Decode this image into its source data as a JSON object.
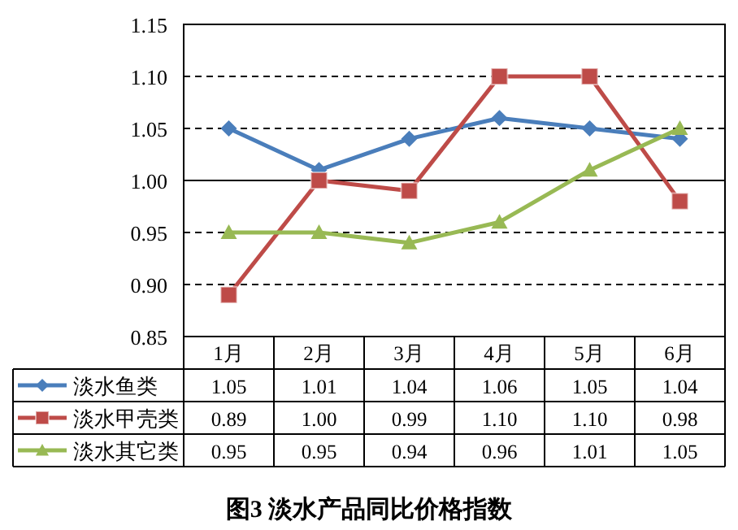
{
  "chart_data": {
    "type": "line",
    "title": "图3 淡水产品同比价格指数",
    "categories": [
      "1月",
      "2月",
      "3月",
      "4月",
      "5月",
      "6月"
    ],
    "series": [
      {
        "name": "淡水鱼类",
        "color": "#4a7ebb",
        "marker": "diamond",
        "values": [
          1.05,
          1.01,
          1.04,
          1.06,
          1.05,
          1.04
        ]
      },
      {
        "name": "淡水甲壳类",
        "color": "#be4b48",
        "marker": "square",
        "values": [
          0.89,
          1.0,
          0.99,
          1.1,
          1.1,
          0.98
        ],
        "value_labels": [
          "0.89",
          "1.00",
          "0.99",
          "1.10",
          "1.10",
          "0.98"
        ]
      },
      {
        "name": "淡水其它类",
        "color": "#98b954",
        "marker": "triangle",
        "values": [
          0.95,
          0.95,
          0.94,
          0.96,
          1.01,
          1.05
        ]
      }
    ],
    "ylim": [
      0.85,
      1.15
    ],
    "yticks": [
      {
        "value": 0.85,
        "label": "0.85"
      },
      {
        "value": 0.9,
        "label": "0.90"
      },
      {
        "value": 0.95,
        "label": "0.95"
      },
      {
        "value": 1.0,
        "label": "1.00"
      },
      {
        "value": 1.05,
        "label": "1.05"
      },
      {
        "value": 1.1,
        "label": "1.10"
      },
      {
        "value": 1.15,
        "label": "1.15"
      }
    ],
    "grid": "y",
    "ref_lines": [
      {
        "axis": "y",
        "value": 1.0,
        "line_style": "solid"
      }
    ],
    "data_labels": true,
    "legend": "bottom"
  }
}
